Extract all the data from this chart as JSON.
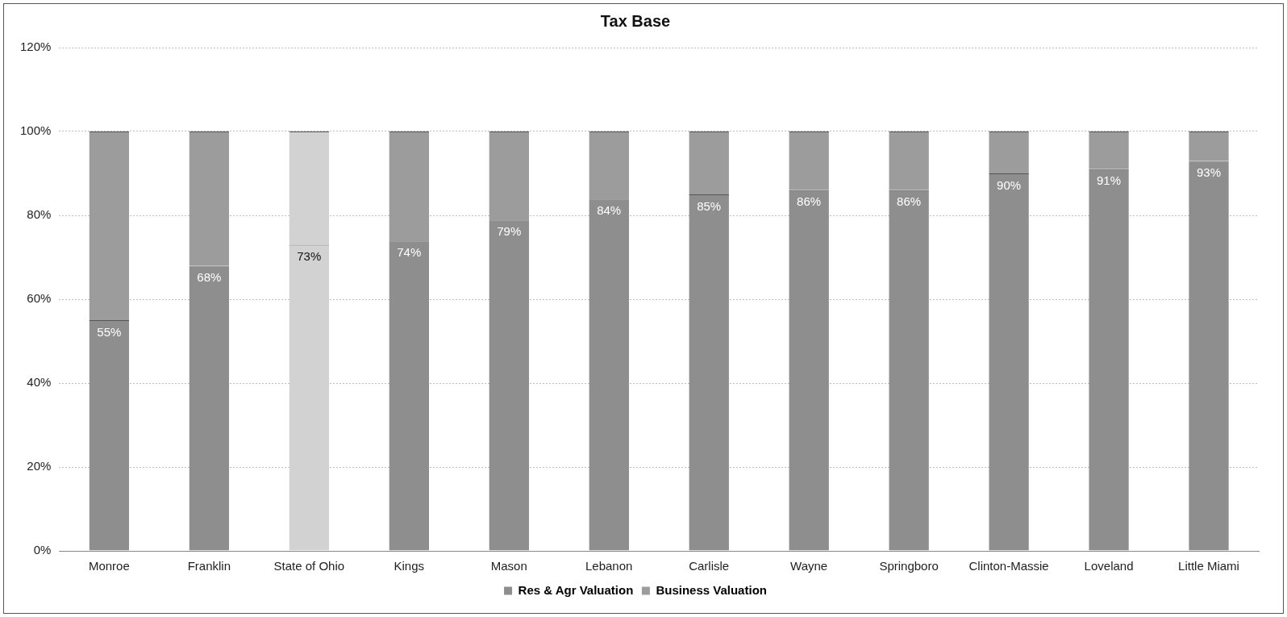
{
  "chart_data": {
    "type": "bar",
    "title": "Tax Base",
    "stacked": true,
    "categories": [
      "Monroe",
      "Franklin",
      "State of Ohio",
      "Kings",
      "Mason",
      "Lebanon",
      "Carlisle",
      "Wayne",
      "Springboro",
      "Clinton-Massie",
      "Loveland",
      "Little Miami"
    ],
    "series": [
      {
        "name": "Res & Agr Valuation",
        "color": "#8e8e8e",
        "colors": [
          "#8e8e8e",
          "#8e8e8e",
          "#d2d2d2",
          "#8e8e8e",
          "#8e8e8e",
          "#8e8e8e",
          "#8e8e8e",
          "#8e8e8e",
          "#8e8e8e",
          "#8e8e8e",
          "#8e8e8e",
          "#8e8e8e"
        ],
        "values": [
          55,
          68,
          73,
          74,
          79,
          84,
          85,
          86,
          86,
          90,
          91,
          93
        ],
        "value_labels": [
          "55%",
          "68%",
          "73%",
          "74%",
          "79%",
          "84%",
          "85%",
          "86%",
          "86%",
          "90%",
          "91%",
          "93%"
        ]
      },
      {
        "name": "Business Valuation",
        "color": "#9c9c9c",
        "colors": [
          "#9c9c9c",
          "#9c9c9c",
          "#d2d2d2",
          "#9c9c9c",
          "#9c9c9c",
          "#9c9c9c",
          "#9c9c9c",
          "#9c9c9c",
          "#9c9c9c",
          "#9c9c9c",
          "#9c9c9c",
          "#9c9c9c"
        ],
        "values": [
          45,
          32,
          27,
          26,
          21,
          16,
          15,
          14,
          14,
          10,
          9,
          7
        ]
      }
    ],
    "ylim": [
      0,
      120
    ],
    "yticks": [
      {
        "value": 0,
        "label": "0%"
      },
      {
        "value": 20,
        "label": "20%"
      },
      {
        "value": 40,
        "label": "40%"
      },
      {
        "value": 60,
        "label": "60%"
      },
      {
        "value": 80,
        "label": "80%"
      },
      {
        "value": 100,
        "label": "100%"
      },
      {
        "value": 120,
        "label": "120%"
      }
    ],
    "grid": "y",
    "legend": "bottom"
  }
}
